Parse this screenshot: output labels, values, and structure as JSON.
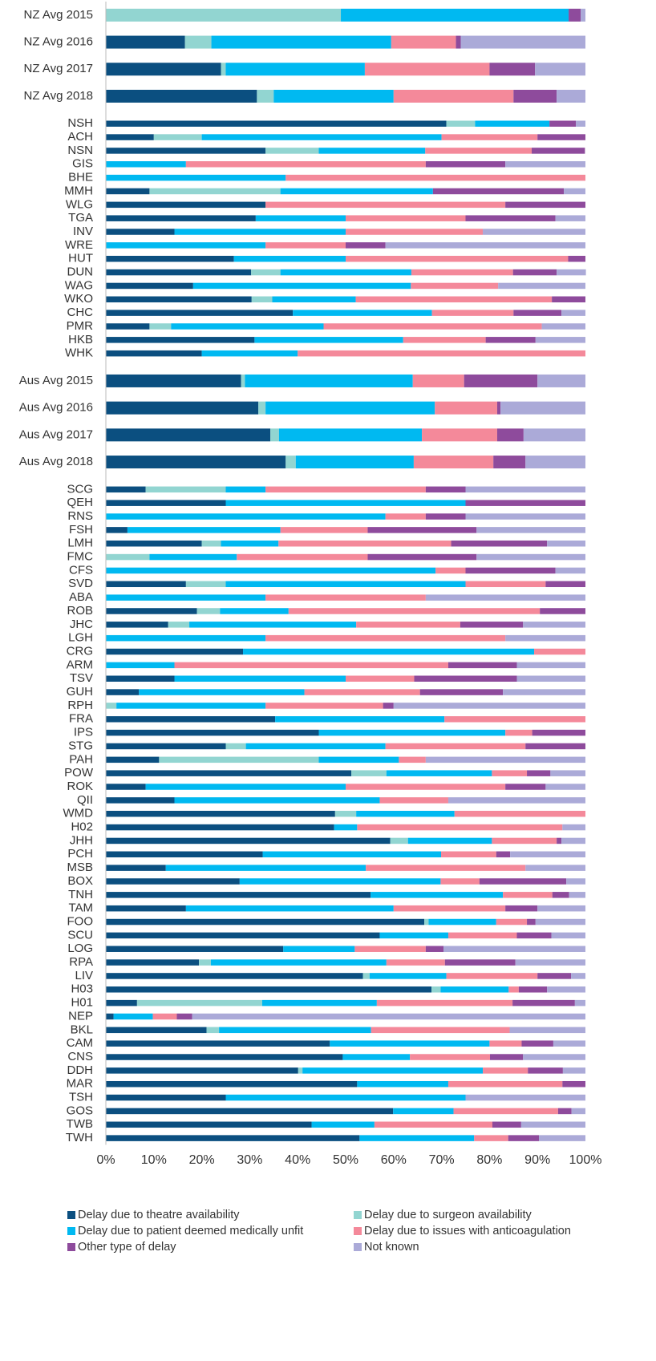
{
  "chart_data": {
    "type": "stacked_bar_horizontal",
    "categories": [
      "NZ Avg 2015",
      "NZ Avg 2016",
      "NZ Avg 2017",
      "NZ Avg 2018",
      "NSH",
      "ACH",
      "NSN",
      "GIS",
      "BHE",
      "MMH",
      "WLG",
      "TGA",
      "INV",
      "WRE",
      "HUT",
      "DUN",
      "WAG",
      "WKO",
      "CHC",
      "PMR",
      "HKB",
      "WHK",
      "Aus Avg 2015",
      "Aus Avg 2016",
      "Aus Avg 2017",
      "Aus Avg 2018",
      "SCG",
      "QEH",
      "RNS",
      "FSH",
      "LMH",
      "FMC",
      "CFS",
      "SVD",
      "ABA",
      "ROB",
      "JHC",
      "LGH",
      "CRG",
      "ARM",
      "TSV",
      "GUH",
      "RPH",
      "FRA",
      "IPS",
      "STG",
      "PAH",
      "POW",
      "ROK",
      "QII",
      "WMD",
      "H02",
      "JHH",
      "PCH",
      "MSB",
      "BOX",
      "TNH",
      "TAM",
      "FOO",
      "SCU",
      "LOG",
      "RPA",
      "LIV",
      "H03",
      "H01",
      "NEP",
      "BKL",
      "CAM",
      "CNS",
      "DDH",
      "MAR",
      "TSH",
      "GOS",
      "TWB",
      "TWH"
    ],
    "series": [
      {
        "name": "Delay due to theatre availability",
        "color": "#0b4f80",
        "values": [
          0,
          16.5,
          24,
          31.5,
          71,
          10,
          33.3,
          0,
          0,
          9.1,
          33.3,
          31.25,
          14.3,
          0,
          26.7,
          30.3,
          18.2,
          30.4,
          39,
          9.1,
          31,
          20,
          28.2,
          31.8,
          34.3,
          37.5,
          8.3,
          25,
          0,
          4.5,
          20,
          0,
          0,
          16.7,
          0,
          19,
          13,
          0,
          28.6,
          0,
          14.3,
          6.9,
          0,
          35.3,
          44.4,
          25,
          11.1,
          51.2,
          8.3,
          14.3,
          47.8,
          47.6,
          59.3,
          32.7,
          12.5,
          27.9,
          55.2,
          16.7,
          66.4,
          57.1,
          37,
          19.4,
          53.6,
          67.9,
          6.5,
          1.6,
          21,
          46.7,
          49.4,
          40.1,
          52.4,
          25,
          59.9,
          42.9,
          52.9
        ]
      },
      {
        "name": "Delay due to surgeon availability",
        "color": "#92d5d1",
        "values": [
          49,
          5.5,
          1,
          3.5,
          6,
          10,
          11.1,
          0,
          0,
          27.3,
          0,
          0,
          0,
          0,
          0,
          6.1,
          0,
          4.3,
          0,
          4.5,
          0,
          0,
          0.8,
          1.5,
          1.8,
          2.1,
          16.7,
          0,
          0,
          0,
          4,
          9.1,
          0,
          8.3,
          0,
          4.8,
          4.4,
          0,
          0,
          0,
          0,
          0,
          2.2,
          0,
          0,
          4.2,
          33.3,
          7.3,
          0,
          0,
          4.4,
          0,
          3.7,
          0,
          0,
          0,
          0,
          0,
          0.9,
          0,
          0,
          2.5,
          1.4,
          1.9,
          26.1,
          0,
          2.6,
          0,
          0,
          0.9,
          0,
          0,
          0,
          0,
          0
        ]
      },
      {
        "name": "Delay due to patient deemed medically unfit",
        "color": "#00b9f1",
        "values": [
          47.5,
          37.5,
          29,
          25,
          15.5,
          50,
          22.2,
          16.7,
          37.5,
          31.8,
          0,
          18.75,
          35.7,
          33.3,
          23.3,
          27.3,
          45.4,
          17.4,
          29,
          31.8,
          31,
          20,
          35,
          35.3,
          29.8,
          24.6,
          8.3,
          50,
          58.3,
          31.9,
          12,
          18.2,
          68.75,
          50,
          33.3,
          14.3,
          34.8,
          33.3,
          60.7,
          14.3,
          35.7,
          34.5,
          31.1,
          35.3,
          38.9,
          29.1,
          16.7,
          22,
          41.7,
          42.8,
          20.5,
          4.8,
          17.5,
          37.2,
          41.7,
          41.9,
          27.6,
          43.3,
          14.1,
          14.3,
          14.9,
          36.6,
          16,
          14.2,
          23.9,
          8.2,
          31.7,
          33.3,
          14,
          37.6,
          19,
          50,
          12.6,
          13.1,
          23.9
        ]
      },
      {
        "name": "Delay due to issues with anticoagulation",
        "color": "#f4899a",
        "values": [
          0,
          13.5,
          26,
          25,
          0,
          20,
          22.2,
          50,
          62.5,
          0,
          50,
          25,
          28.6,
          16.7,
          46.4,
          21.2,
          18.2,
          40.9,
          17,
          45.5,
          17.2,
          60,
          10.7,
          13,
          15.7,
          16.6,
          33.4,
          0,
          8.4,
          18.2,
          36,
          27.3,
          6.25,
          16.7,
          33.4,
          52.4,
          21.7,
          50,
          10.7,
          57.1,
          14.3,
          24.1,
          24.5,
          29.4,
          5.6,
          29.2,
          5.6,
          7.3,
          33.3,
          14.3,
          27.3,
          42.8,
          13.5,
          11.5,
          33.3,
          8.1,
          10.3,
          23.3,
          6.4,
          14.3,
          14.8,
          12.2,
          19,
          2.1,
          28.3,
          5,
          28.9,
          6.7,
          16.7,
          9.4,
          23.8,
          0,
          21.8,
          24.6,
          7.1
        ]
      },
      {
        "name": "Other type of delay",
        "color": "#8e4b9c",
        "values": [
          2.5,
          1,
          9.5,
          9,
          5.5,
          10,
          11.1,
          16.6,
          0,
          27.3,
          16.7,
          18.75,
          0,
          8.3,
          3.6,
          9.1,
          0,
          7,
          10,
          0,
          10.4,
          0,
          15.3,
          0.7,
          5.5,
          6.7,
          8.3,
          25,
          8.3,
          22.7,
          20,
          22.7,
          18.75,
          8.3,
          0,
          9.5,
          13.1,
          0,
          0,
          14.3,
          21.4,
          17.3,
          2.2,
          0,
          11.1,
          12.5,
          0,
          4.9,
          8.4,
          0,
          0,
          0,
          1,
          2.9,
          0,
          18.1,
          3.5,
          6.7,
          1.8,
          7.2,
          3.7,
          14.7,
          7,
          5.9,
          13,
          3.2,
          0,
          6.6,
          6.9,
          7.3,
          4.8,
          0,
          2.8,
          6,
          6.4
        ]
      },
      {
        "name": "Not known",
        "color": "#abaad8",
        "values": [
          1,
          26,
          10.5,
          6,
          2,
          0,
          0,
          16.7,
          0,
          4.5,
          0,
          6.25,
          21.4,
          41.7,
          0,
          6.1,
          18.2,
          0,
          5,
          9.1,
          10.4,
          0,
          10,
          17.7,
          12.9,
          12.5,
          25,
          0,
          25,
          22.7,
          8,
          22.7,
          6.25,
          0,
          33.3,
          0,
          13,
          16.7,
          0,
          14.3,
          14.3,
          17.2,
          40,
          0,
          0,
          0,
          33.3,
          7.3,
          8.3,
          28.6,
          0,
          4.8,
          5,
          15.7,
          12.5,
          4,
          3.4,
          10,
          10.4,
          7.1,
          29.6,
          14.6,
          3,
          8,
          2.2,
          82,
          15.8,
          6.7,
          13,
          4.7,
          0,
          25,
          2.9,
          13.4,
          9.7
        ]
      }
    ],
    "xlim": [
      0,
      100
    ],
    "xticks": [
      {
        "value": 0,
        "label": "0%"
      },
      {
        "value": 10,
        "label": "10%"
      },
      {
        "value": 20,
        "label": "20%"
      },
      {
        "value": 30,
        "label": "30%"
      },
      {
        "value": 40,
        "label": "40%"
      },
      {
        "value": 50,
        "label": "50%"
      },
      {
        "value": 60,
        "label": "60%"
      },
      {
        "value": 70,
        "label": "70%"
      },
      {
        "value": 80,
        "label": "80%"
      },
      {
        "value": 90,
        "label": "90%"
      },
      {
        "value": 100,
        "label": "100%"
      }
    ],
    "legend": "bottom"
  }
}
